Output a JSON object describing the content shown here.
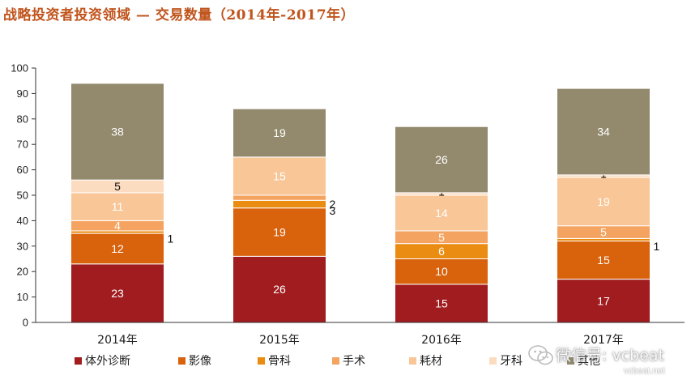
{
  "chart_data": {
    "type": "stacked-bar",
    "title": "战略投资者投资领域 — 交易数量（2014年-2017年）",
    "categories": [
      "2014年",
      "2015年",
      "2016年",
      "2017年"
    ],
    "ylim": [
      0,
      100
    ],
    "yticks": [
      0,
      10,
      20,
      30,
      40,
      50,
      60,
      70,
      80,
      90,
      100
    ],
    "grid": false,
    "legend_position": "bottom",
    "series": [
      {
        "name": "体外诊断",
        "color": "#a11c1f",
        "label_color": "#ffffff",
        "values": [
          23,
          26,
          15,
          17
        ],
        "labels": [
          "23",
          "26",
          "15",
          "17"
        ]
      },
      {
        "name": "影像",
        "color": "#d9620c",
        "label_color": "#ffffff",
        "values": [
          12,
          19,
          10,
          15
        ],
        "labels": [
          "12",
          "19",
          "10",
          "15"
        ]
      },
      {
        "name": "骨科",
        "color": "#eb8c12",
        "label_color": "#ffffff",
        "values": [
          1,
          3,
          6,
          1
        ],
        "labels": [
          "1",
          "3",
          "6",
          "1"
        ]
      },
      {
        "name": "手术",
        "color": "#f4a460",
        "label_color": "#ffffff",
        "values": [
          4,
          2,
          5,
          5
        ],
        "labels": [
          "4",
          "2",
          "5",
          "5"
        ]
      },
      {
        "name": "耗材",
        "color": "#f9c698",
        "label_color": "#ffffff",
        "values": [
          11,
          15,
          14,
          19
        ],
        "labels": [
          "11",
          "15",
          "14",
          "19"
        ]
      },
      {
        "name": "牙科",
        "color": "#fbdcc0",
        "label_color": "#111111",
        "values": [
          5,
          0,
          1,
          1
        ],
        "labels": [
          "5",
          "-",
          "1",
          "1"
        ]
      },
      {
        "name": "其他",
        "color": "#938a6e",
        "label_color": "#ffffff",
        "values": [
          38,
          19,
          26,
          34
        ],
        "labels": [
          "38",
          "19",
          "26",
          "34"
        ]
      }
    ]
  },
  "watermark": {
    "main": "微信号: vcbeat",
    "sub": "vcbeat.net"
  }
}
